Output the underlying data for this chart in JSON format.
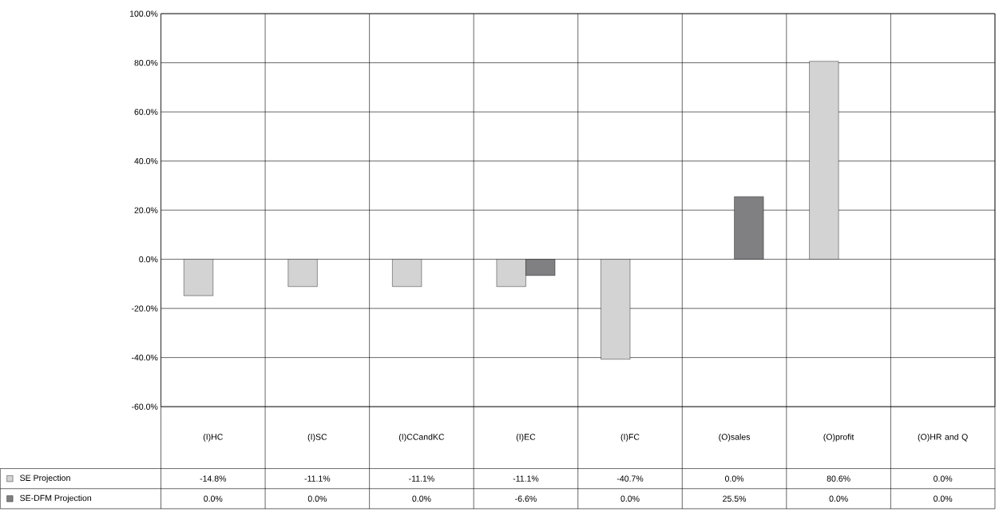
{
  "chart_data": {
    "type": "bar",
    "categories": [
      "(I)HC",
      "(I)SC",
      "(I)CCandKC",
      "(I)EC",
      "(I)FC",
      "(O)sales",
      "(O)profit",
      "(O)HR and Q"
    ],
    "series": [
      {
        "name": "SE Projection",
        "color": "#d3d3d3",
        "values": [
          -14.8,
          -11.1,
          -11.1,
          -11.1,
          -40.7,
          0.0,
          80.6,
          0.0
        ],
        "value_labels": [
          "-14.8%",
          "-11.1%",
          "-11.1%",
          "-11.1%",
          "-40.7%",
          "0.0%",
          "80.6%",
          "0.0%"
        ]
      },
      {
        "name": "SE-DFM Projection",
        "color": "#808083",
        "values": [
          0.0,
          0.0,
          0.0,
          -6.6,
          0.0,
          25.5,
          0.0,
          0.0
        ],
        "value_labels": [
          "0.0%",
          "0.0%",
          "0.0%",
          "-6.6%",
          "0.0%",
          "25.5%",
          "0.0%",
          "0.0%"
        ]
      }
    ],
    "ylim": [
      -60,
      100
    ],
    "yticks": [
      {
        "value": -60,
        "label": "-60.0%"
      },
      {
        "value": -40,
        "label": "-40.0%"
      },
      {
        "value": -20,
        "label": "-20.0%"
      },
      {
        "value": 0,
        "label": "0.0%"
      },
      {
        "value": 20,
        "label": "20.0%"
      },
      {
        "value": 40,
        "label": "40.0%"
      },
      {
        "value": 60,
        "label": "60.0%"
      },
      {
        "value": 80,
        "label": "80.0%"
      },
      {
        "value": 100,
        "label": "100.0%"
      }
    ],
    "grid": "y",
    "legend": "bottom left"
  }
}
